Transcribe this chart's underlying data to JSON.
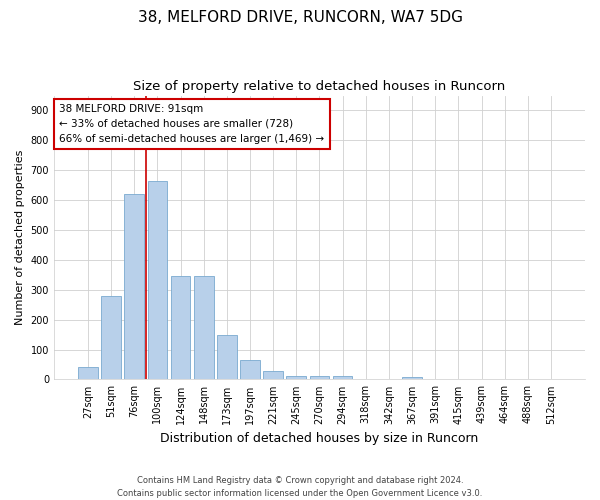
{
  "title1": "38, MELFORD DRIVE, RUNCORN, WA7 5DG",
  "title2": "Size of property relative to detached houses in Runcorn",
  "xlabel": "Distribution of detached houses by size in Runcorn",
  "ylabel": "Number of detached properties",
  "bar_labels": [
    "27sqm",
    "51sqm",
    "76sqm",
    "100sqm",
    "124sqm",
    "148sqm",
    "173sqm",
    "197sqm",
    "221sqm",
    "245sqm",
    "270sqm",
    "294sqm",
    "318sqm",
    "342sqm",
    "367sqm",
    "391sqm",
    "415sqm",
    "439sqm",
    "464sqm",
    "488sqm",
    "512sqm"
  ],
  "bar_values": [
    40,
    278,
    620,
    665,
    345,
    345,
    148,
    65,
    27,
    13,
    10,
    10,
    0,
    0,
    8,
    0,
    0,
    0,
    0,
    0,
    0
  ],
  "bar_color": "#b8d0ea",
  "bar_edge_color": "#7aaacf",
  "vline_index": 3.0,
  "vline_color": "#cc0000",
  "annotation_line1": "38 MELFORD DRIVE: 91sqm",
  "annotation_line2": "← 33% of detached houses are smaller (728)",
  "annotation_line3": "66% of semi-detached houses are larger (1,469) →",
  "annotation_box_color": "#ffffff",
  "annotation_box_edge": "#cc0000",
  "ylim": [
    0,
    950
  ],
  "yticks": [
    0,
    100,
    200,
    300,
    400,
    500,
    600,
    700,
    800,
    900
  ],
  "footer_text": "Contains HM Land Registry data © Crown copyright and database right 2024.\nContains public sector information licensed under the Open Government Licence v3.0.",
  "bg_color": "#ffffff",
  "grid_color": "#d0d0d0",
  "title1_fontsize": 11,
  "title2_fontsize": 9.5,
  "xlabel_fontsize": 9,
  "ylabel_fontsize": 8,
  "tick_fontsize": 7,
  "annotation_fontsize": 7.5,
  "footer_fontsize": 6
}
